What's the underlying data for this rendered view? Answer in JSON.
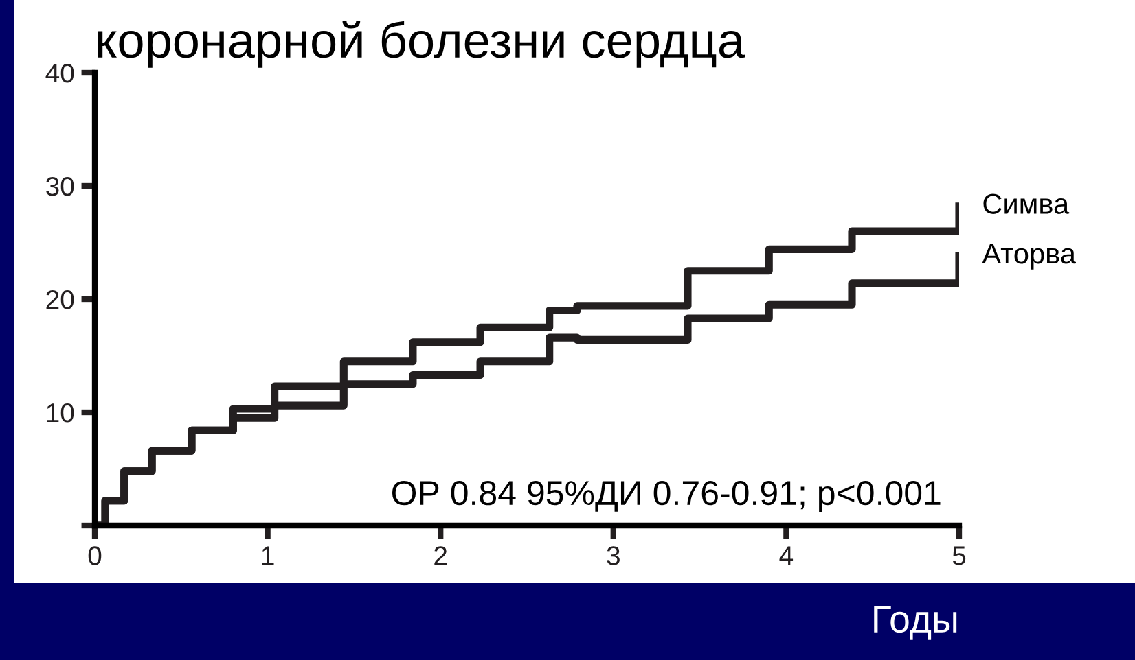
{
  "chart_data": {
    "type": "step",
    "title": "коронарной болезни сердца",
    "xlabel": "Годы",
    "x": [
      0,
      0.06,
      0.17,
      0.33,
      0.56,
      0.8,
      1.04,
      1.44,
      1.84,
      2.23,
      2.63,
      2.79,
      3.43,
      3.9,
      4.38,
      5.0
    ],
    "series": [
      {
        "name": "Симва",
        "color": "#231f20",
        "values": [
          0,
          2.2,
          4.8,
          6.6,
          8.4,
          10.3,
          12.3,
          14.5,
          16.2,
          17.5,
          19.0,
          19.4,
          22.5,
          24.4,
          26.0,
          28.2
        ]
      },
      {
        "name": "Аторва",
        "color": "#231f20",
        "values": [
          0,
          2.2,
          4.8,
          6.6,
          8.4,
          9.5,
          10.6,
          12.5,
          13.3,
          14.5,
          16.6,
          16.4,
          18.3,
          19.5,
          21.4,
          23.8
        ]
      }
    ],
    "annotations": [
      "ОР 0.84 95%ДИ 0.76-0.91; p<0.001"
    ],
    "xlim": [
      0,
      5
    ],
    "ylim": [
      0,
      40
    ],
    "xticks": [
      0,
      1,
      2,
      3,
      4,
      5
    ],
    "yticks": [
      {
        "value": 0,
        "label": null
      },
      10,
      20,
      30,
      40
    ],
    "legend": false,
    "grid": false,
    "line_style": "solid",
    "marker": "none"
  }
}
